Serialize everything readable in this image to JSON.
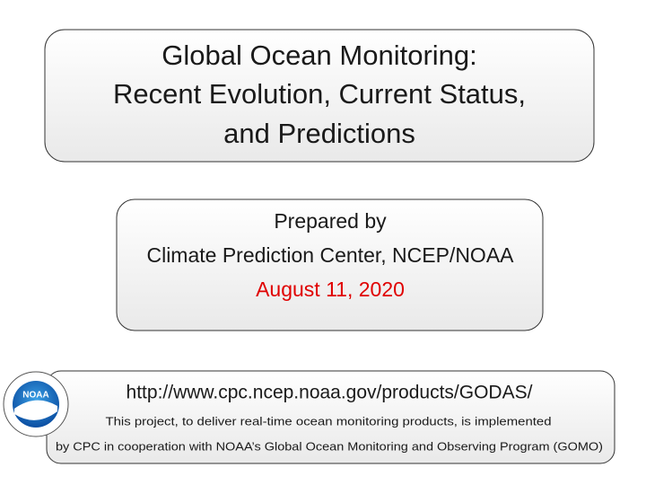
{
  "title_box": {
    "lines": [
      "Global Ocean Monitoring:",
      "Recent Evolution, Current Status,",
      "and Predictions"
    ]
  },
  "info_box": {
    "prepared": "Prepared by",
    "organization": "Climate Prediction Center, NCEP/NOAA",
    "date": "August 11, 2020"
  },
  "footer_box": {
    "url": "http://www.cpc.ncep.noaa.gov/products/GODAS/",
    "note_lines": [
      "This project, to deliver real-time ocean monitoring products, is implemented",
      "by CPC in cooperation with NOAA’s Global Ocean Monitoring and Observing Program (GOMO)"
    ]
  },
  "logo": {
    "label": "NOAA"
  }
}
